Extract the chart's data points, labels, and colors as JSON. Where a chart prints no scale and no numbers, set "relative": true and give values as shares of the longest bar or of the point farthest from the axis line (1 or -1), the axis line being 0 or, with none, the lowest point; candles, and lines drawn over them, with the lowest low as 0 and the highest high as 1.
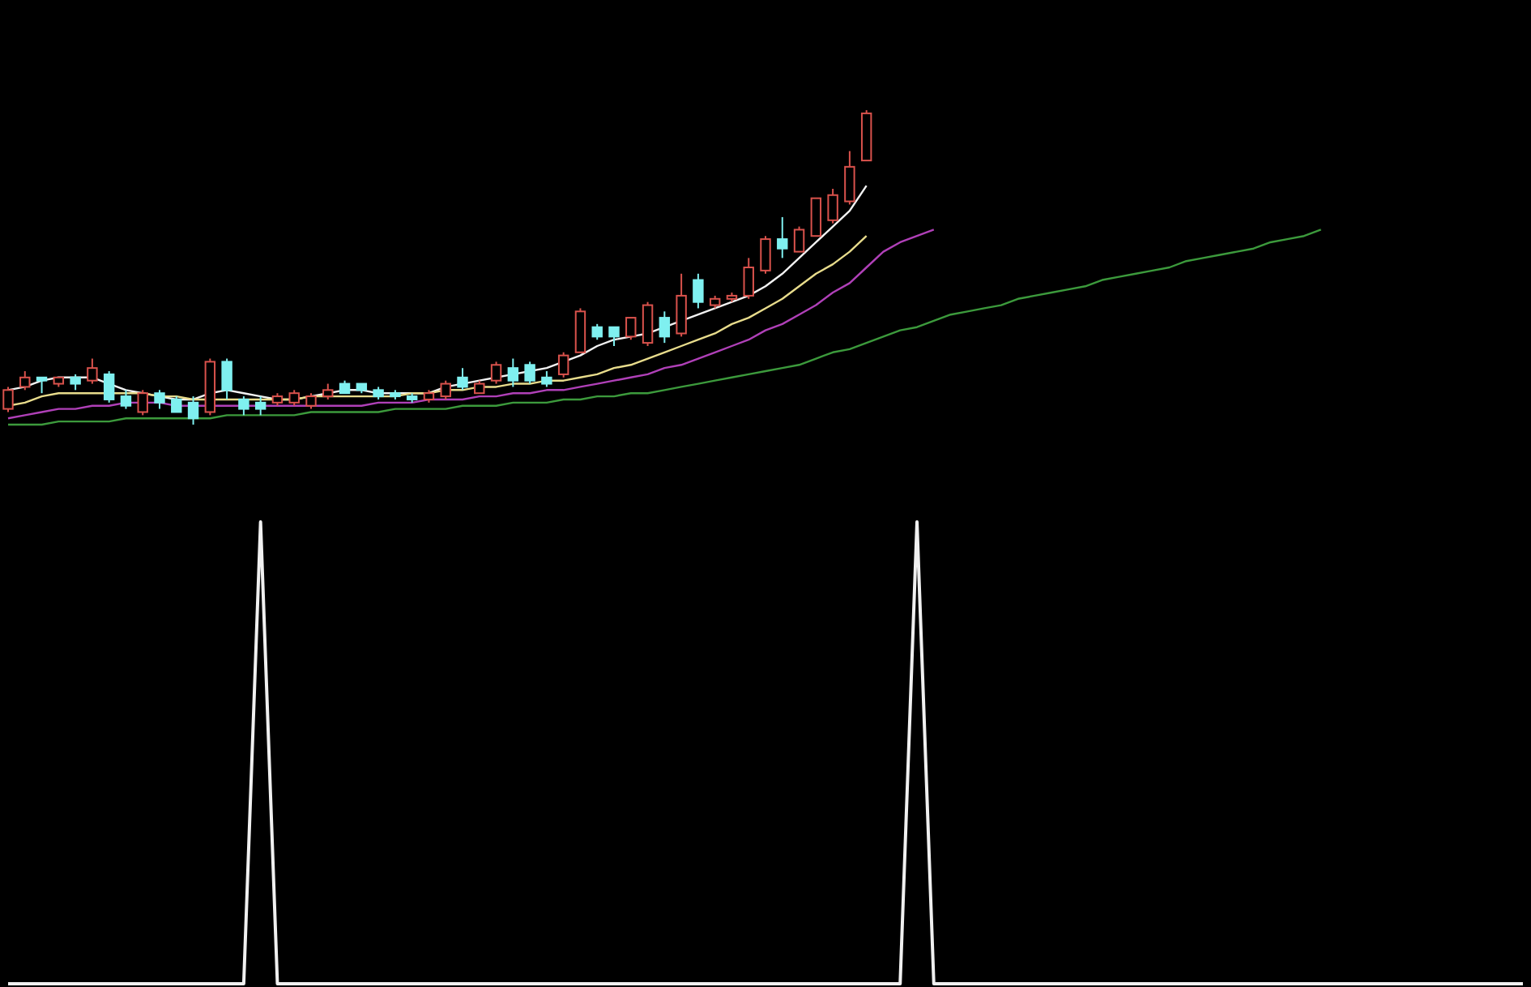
{
  "chart_data": [
    {
      "type": "candlestick",
      "relative": true,
      "categories": [
        null,
        null,
        null,
        null,
        null,
        null,
        null,
        null,
        null,
        null,
        null,
        null,
        null,
        null,
        null,
        null,
        null,
        null,
        null,
        null,
        null,
        null,
        null,
        null,
        null,
        null,
        null,
        null,
        null,
        null,
        null,
        null,
        null,
        null,
        null,
        null,
        null,
        null,
        null,
        null,
        null,
        null,
        null,
        null,
        null,
        null,
        null,
        null,
        null,
        null,
        null,
        null,
        null,
        null,
        null,
        null,
        null,
        null,
        null,
        null,
        null,
        null,
        null,
        null,
        null,
        null,
        null,
        null,
        null,
        null,
        null,
        null,
        null,
        null,
        null,
        null,
        null,
        null,
        null,
        null,
        null,
        null,
        null,
        null,
        null,
        null,
        null,
        null,
        null,
        null,
        null
      ],
      "ohlc": [
        [
          0.05,
          0.12,
          0.04,
          0.11
        ],
        [
          0.12,
          0.17,
          0.11,
          0.15
        ],
        [
          0.15,
          0.15,
          0.1,
          0.14
        ],
        [
          0.13,
          0.15,
          0.12,
          0.15
        ],
        [
          0.15,
          0.16,
          0.11,
          0.13
        ],
        [
          0.14,
          0.21,
          0.13,
          0.18
        ],
        [
          0.16,
          0.17,
          0.07,
          0.08
        ],
        [
          0.09,
          0.11,
          0.05,
          0.06
        ],
        [
          0.04,
          0.11,
          0.03,
          0.1
        ],
        [
          0.1,
          0.11,
          0.05,
          0.07
        ],
        [
          0.08,
          0.09,
          0.04,
          0.04
        ],
        [
          0.07,
          0.09,
          0,
          0.02
        ],
        [
          0.04,
          0.21,
          0.03,
          0.2
        ],
        [
          0.2,
          0.21,
          0.08,
          0.11
        ],
        [
          0.08,
          0.09,
          0.03,
          0.05
        ],
        [
          0.07,
          0.09,
          0.03,
          0.05
        ],
        [
          0.07,
          0.1,
          0.06,
          0.09
        ],
        [
          0.07,
          0.11,
          0.06,
          0.1
        ],
        [
          0.06,
          0.1,
          0.05,
          0.09
        ],
        [
          0.09,
          0.13,
          0.08,
          0.11
        ],
        [
          0.13,
          0.14,
          0.1,
          0.1
        ],
        [
          0.13,
          0.13,
          0.1,
          0.11
        ],
        [
          0.11,
          0.12,
          0.08,
          0.09
        ],
        [
          0.1,
          0.11,
          0.08,
          0.09
        ],
        [
          0.09,
          0.1,
          0.07,
          0.08
        ],
        [
          0.08,
          0.11,
          0.07,
          0.1
        ],
        [
          0.09,
          0.14,
          0.08,
          0.13
        ],
        [
          0.15,
          0.18,
          0.11,
          0.12
        ],
        [
          0.1,
          0.14,
          0.1,
          0.13
        ],
        [
          0.14,
          0.2,
          0.13,
          0.19
        ],
        [
          0.18,
          0.21,
          0.12,
          0.14
        ],
        [
          0.19,
          0.2,
          0.13,
          0.14
        ],
        [
          0.15,
          0.17,
          0.12,
          0.13
        ],
        [
          0.16,
          0.23,
          0.15,
          0.22
        ],
        [
          0.23,
          0.37,
          0.23,
          0.36
        ],
        [
          0.31,
          0.32,
          0.27,
          0.28
        ],
        [
          0.31,
          0.31,
          0.25,
          0.28
        ],
        [
          0.28,
          0.34,
          0.27,
          0.34
        ],
        [
          0.26,
          0.39,
          0.25,
          0.38
        ],
        [
          0.34,
          0.36,
          0.26,
          0.28
        ],
        [
          0.29,
          0.48,
          0.28,
          0.41
        ],
        [
          0.46,
          0.48,
          0.37,
          0.39
        ],
        [
          0.38,
          0.41,
          0.37,
          0.4
        ],
        [
          0.4,
          0.42,
          0.39,
          0.41
        ],
        [
          0.41,
          0.53,
          0.4,
          0.5
        ],
        [
          0.49,
          0.6,
          0.48,
          0.59
        ],
        [
          0.59,
          0.66,
          0.53,
          0.56
        ],
        [
          0.55,
          0.63,
          0.55,
          0.62
        ],
        [
          0.6,
          0.72,
          0.6,
          0.72
        ],
        [
          0.65,
          0.75,
          0.64,
          0.73
        ],
        [
          0.71,
          0.87,
          0.7,
          0.82
        ],
        [
          0.84,
          1,
          0.84,
          0.99
        ],
        null,
        null,
        null,
        null,
        null,
        null,
        null,
        null,
        null,
        null,
        null,
        null,
        null,
        null,
        null,
        null,
        null,
        null,
        null,
        null,
        null,
        null,
        null,
        null,
        null,
        null,
        null,
        null,
        null,
        null,
        null,
        null,
        null,
        null,
        null,
        null,
        null,
        null,
        null
      ],
      "colors": [
        "#d9524c",
        "#d9524c",
        "#7ff0f0",
        "#d9524c",
        "#7ff0f0",
        "#d9524c",
        "#7ff0f0",
        "#7ff0f0",
        "#d9524c",
        "#7ff0f0",
        "#7ff0f0",
        "#7ff0f0",
        "#d9524c",
        "#7ff0f0",
        "#7ff0f0",
        "#7ff0f0",
        "#d9524c",
        "#d9524c",
        "#d9524c",
        "#d9524c",
        "#7ff0f0",
        "#7ff0f0",
        "#7ff0f0",
        "#7ff0f0",
        "#7ff0f0",
        "#d9524c",
        "#d9524c",
        "#7ff0f0",
        "#d9524c",
        "#d9524c",
        "#7ff0f0",
        "#7ff0f0",
        "#7ff0f0",
        "#d9524c",
        "#d9524c",
        "#7ff0f0",
        "#7ff0f0",
        "#d9524c",
        "#d9524c",
        "#7ff0f0",
        "#d9524c",
        "#7ff0f0",
        "#d9524c",
        "#d9524c",
        "#d9524c",
        "#d9524c",
        "#7ff0f0",
        "#d9524c",
        "#d9524c",
        "#d9524c",
        "#d9524c",
        "#d9524c",
        null,
        null,
        null,
        null,
        null,
        null,
        null,
        null,
        null,
        null,
        null,
        null,
        null,
        null,
        null,
        null,
        null,
        null,
        null,
        null,
        null,
        null,
        null,
        null,
        null,
        null,
        null,
        null,
        null,
        null,
        null,
        null,
        null,
        null,
        null,
        null,
        null,
        null,
        null
      ],
      "series": [
        {
          "type": "line",
          "color": "#f2f2f2",
          "values": [
            0.11,
            0.12,
            0.14,
            0.15,
            0.15,
            0.15,
            0.13,
            0.11,
            0.1,
            0.09,
            0.08,
            0.08,
            0.1,
            0.11,
            0.1,
            0.09,
            0.08,
            0.08,
            0.09,
            0.1,
            0.11,
            0.11,
            0.1,
            0.1,
            0.1,
            0.1,
            0.12,
            0.13,
            0.14,
            0.15,
            0.16,
            0.17,
            0.18,
            0.2,
            0.22,
            0.25,
            0.27,
            0.28,
            0.29,
            0.31,
            0.33,
            0.35,
            0.37,
            0.39,
            0.41,
            0.44,
            0.48,
            0.53,
            0.58,
            0.63,
            0.68,
            0.76,
            null,
            null,
            null,
            null,
            null,
            null,
            null,
            null,
            null,
            null,
            null,
            null,
            null,
            null,
            null,
            null,
            null,
            null,
            null,
            null,
            null,
            null,
            null,
            null,
            null,
            null,
            null,
            null,
            null,
            null,
            null,
            null,
            null,
            null,
            null,
            null,
            null,
            null,
            null
          ]
        },
        {
          "type": "line",
          "color": "#e8dc8c",
          "values": [
            0.06,
            0.07,
            0.09,
            0.1,
            0.1,
            0.1,
            0.1,
            0.1,
            0.1,
            0.09,
            0.09,
            0.08,
            0.08,
            0.08,
            0.08,
            0.08,
            0.08,
            0.08,
            0.09,
            0.09,
            0.09,
            0.09,
            0.09,
            0.09,
            0.1,
            0.1,
            0.11,
            0.11,
            0.12,
            0.12,
            0.13,
            0.13,
            0.14,
            0.14,
            0.15,
            0.16,
            0.18,
            0.19,
            0.21,
            0.23,
            0.25,
            0.27,
            0.29,
            0.32,
            0.34,
            0.37,
            0.4,
            0.44,
            0.48,
            0.51,
            0.55,
            0.6,
            null,
            null,
            null,
            null,
            null,
            null,
            null,
            null,
            null,
            null,
            null,
            null,
            null,
            null,
            null,
            null,
            null,
            null,
            null,
            null,
            null,
            null,
            null,
            null,
            null,
            null,
            null,
            null,
            null,
            null,
            null,
            null,
            null,
            null,
            null,
            null,
            null,
            null,
            null
          ]
        },
        {
          "type": "line",
          "color": "#b040b8",
          "values": [
            0.02,
            0.03,
            0.04,
            0.05,
            0.05,
            0.06,
            0.06,
            0.07,
            0.07,
            0.07,
            0.06,
            0.06,
            0.06,
            0.06,
            0.06,
            0.06,
            0.06,
            0.06,
            0.06,
            0.06,
            0.06,
            0.06,
            0.07,
            0.07,
            0.07,
            0.08,
            0.08,
            0.08,
            0.09,
            0.09,
            0.1,
            0.1,
            0.11,
            0.11,
            0.12,
            0.13,
            0.14,
            0.15,
            0.16,
            0.18,
            0.19,
            0.21,
            0.23,
            0.25,
            0.27,
            0.3,
            0.32,
            0.35,
            0.38,
            0.42,
            0.45,
            0.5,
            0.55,
            0.58,
            0.6,
            0.62,
            null,
            null,
            null,
            null,
            null,
            null,
            null,
            null,
            null,
            null,
            null,
            null,
            null,
            null,
            null,
            null,
            null,
            null,
            null,
            null,
            null,
            null,
            null,
            null,
            null,
            null,
            null,
            null,
            null,
            null,
            null,
            null,
            null,
            null,
            null
          ]
        },
        {
          "type": "line",
          "color": "#3c9a3c",
          "values": [
            0,
            0,
            0,
            0.01,
            0.01,
            0.01,
            0.01,
            0.02,
            0.02,
            0.02,
            0.02,
            0.02,
            0.02,
            0.03,
            0.03,
            0.03,
            0.03,
            0.03,
            0.04,
            0.04,
            0.04,
            0.04,
            0.04,
            0.05,
            0.05,
            0.05,
            0.05,
            0.06,
            0.06,
            0.06,
            0.07,
            0.07,
            0.07,
            0.08,
            0.08,
            0.09,
            0.09,
            0.1,
            0.1,
            0.11,
            0.12,
            0.13,
            0.14,
            0.15,
            0.16,
            0.17,
            0.18,
            0.19,
            0.21,
            0.23,
            0.24,
            0.26,
            0.28,
            0.3,
            0.31,
            0.33,
            0.35,
            0.36,
            0.37,
            0.38,
            0.4,
            0.41,
            0.42,
            0.43,
            0.44,
            0.46,
            0.47,
            0.48,
            0.49,
            0.5,
            0.52,
            0.53,
            0.54,
            0.55,
            0.56,
            0.58,
            0.59,
            0.6,
            0.62,
            null,
            null,
            null,
            null,
            null,
            null,
            null,
            null,
            null,
            null,
            null,
            null
          ]
        }
      ]
    },
    {
      "type": "line",
      "relative": true,
      "categories": [
        null,
        null,
        null,
        null,
        null,
        null,
        null,
        null,
        null,
        null,
        null,
        null,
        null,
        null,
        null,
        null,
        null,
        null,
        null,
        null,
        null,
        null,
        null,
        null,
        null,
        null,
        null,
        null,
        null,
        null,
        null,
        null,
        null,
        null,
        null,
        null,
        null,
        null,
        null,
        null,
        null,
        null,
        null,
        null,
        null,
        null,
        null,
        null,
        null,
        null,
        null,
        null,
        null,
        null,
        null,
        null,
        null,
        null,
        null,
        null,
        null,
        null,
        null,
        null,
        null,
        null,
        null,
        null,
        null,
        null,
        null,
        null,
        null,
        null,
        null,
        null,
        null,
        null,
        null,
        null,
        null,
        null,
        null,
        null,
        null,
        null,
        null,
        null,
        null,
        null,
        null
      ],
      "series": [
        {
          "color": "#f0f0f0",
          "values": [
            0,
            0,
            0,
            0,
            0,
            0,
            0,
            0,
            0,
            0,
            0,
            0,
            0,
            0,
            0,
            1,
            0,
            0,
            0,
            0,
            0,
            0,
            0,
            0,
            0,
            0,
            0,
            0,
            0,
            0,
            0,
            0,
            0,
            0,
            0,
            0,
            0,
            0,
            0,
            0,
            0,
            0,
            0,
            0,
            0,
            0,
            0,
            0,
            0,
            0,
            0,
            0,
            0,
            0,
            1,
            0,
            0,
            0,
            0,
            0,
            0,
            0,
            0,
            0,
            0,
            0,
            0,
            0,
            0,
            0,
            0,
            0,
            0,
            0,
            0,
            0,
            0,
            0,
            0,
            0,
            0,
            0,
            0,
            0,
            0,
            0,
            0,
            0,
            0,
            0,
            0
          ]
        }
      ]
    }
  ]
}
